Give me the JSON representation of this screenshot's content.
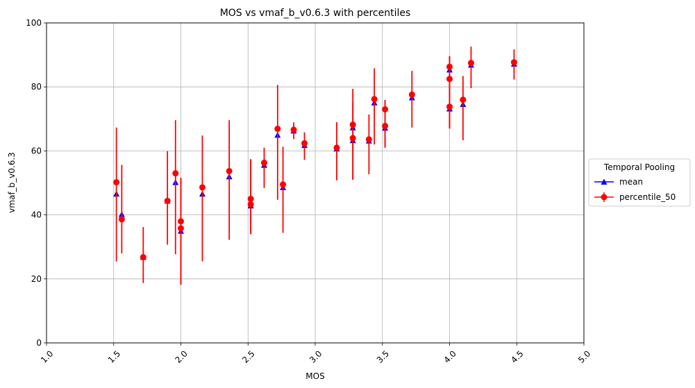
{
  "chart_data": {
    "type": "scatter",
    "title": "MOS vs vmaf_b_v0.6.3 with percentiles",
    "xlabel": "MOS",
    "ylabel": "vmaf_b_v0.6.3",
    "xlim": [
      1.0,
      5.0
    ],
    "ylim": [
      0,
      100
    ],
    "xticks": [
      "1.0",
      "1.5",
      "2.0",
      "2.5",
      "3.0",
      "3.5",
      "4.0",
      "4.5",
      "5.0"
    ],
    "yticks": [
      "0",
      "20",
      "40",
      "60",
      "80",
      "100"
    ],
    "grid": true,
    "legend": {
      "title": "Temporal Pooling",
      "placement": "outside-right"
    },
    "series": [
      {
        "name": "mean",
        "marker": "triangle",
        "color": "#0000ff",
        "x": [
          1.52,
          1.56,
          1.72,
          1.9,
          1.96,
          2.0,
          2.16,
          2.36,
          2.52,
          2.62,
          2.72,
          2.76,
          2.84,
          2.92,
          3.16,
          3.28,
          3.28,
          3.4,
          3.44,
          3.52,
          3.72,
          4.0,
          4.0,
          4.1,
          4.16,
          4.48
        ],
        "y": [
          46.6,
          40.2,
          26.8,
          44.4,
          50.2,
          35.0,
          46.6,
          52.0,
          42.9,
          55.6,
          65.0,
          48.6,
          66.3,
          61.8,
          60.7,
          67.3,
          63.3,
          63.2,
          75.1,
          67.2,
          76.7,
          73.2,
          85.4,
          74.6,
          86.9,
          87.2
        ]
      },
      {
        "name": "percentile_50",
        "marker": "circle",
        "color": "#ff0000",
        "x": [
          1.52,
          1.56,
          1.72,
          1.9,
          1.96,
          2.0,
          2.0,
          2.16,
          2.36,
          2.52,
          2.52,
          2.62,
          2.72,
          2.76,
          2.84,
          2.92,
          3.16,
          3.28,
          3.28,
          3.4,
          3.44,
          3.52,
          3.52,
          3.72,
          4.0,
          4.0,
          4.0,
          4.1,
          4.16,
          4.48
        ],
        "y": [
          50.2,
          38.6,
          26.8,
          44.4,
          53.0,
          35.8,
          38.0,
          48.6,
          53.7,
          45.0,
          43.3,
          56.3,
          66.9,
          49.5,
          66.6,
          62.4,
          61.0,
          68.2,
          64.0,
          63.6,
          76.2,
          73.0,
          67.8,
          77.6,
          73.8,
          86.3,
          82.5,
          76.0,
          87.5,
          87.7
        ],
        "err_low": [
          25.4,
          28.0,
          18.7,
          30.7,
          27.7,
          18.2,
          18.2,
          25.5,
          32.2,
          34.0,
          34.0,
          48.4,
          44.7,
          34.4,
          63.7,
          57.2,
          50.8,
          51.0,
          51.0,
          52.7,
          62.0,
          61.0,
          61.0,
          67.3,
          67.0,
          67.0,
          67.0,
          63.3,
          79.6,
          82.3
        ],
        "err_high": [
          67.3,
          55.6,
          36.2,
          59.9,
          69.6,
          51.6,
          51.6,
          64.8,
          69.6,
          57.4,
          57.4,
          61.0,
          80.6,
          61.3,
          68.9,
          65.8,
          69.0,
          79.4,
          75.0,
          71.4,
          85.8,
          75.9,
          75.9,
          85.0,
          89.6,
          89.6,
          89.6,
          83.4,
          92.6,
          91.7
        ]
      }
    ]
  }
}
